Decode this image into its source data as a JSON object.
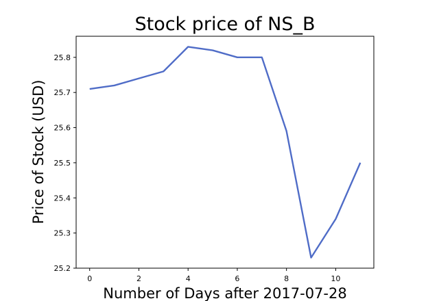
{
  "chart_data": {
    "type": "line",
    "title": "Stock price of NS_B",
    "xlabel": "Number of Days after 2017-07-28",
    "ylabel": "Price of Stock (USD)",
    "x": [
      0,
      1,
      2,
      3,
      4,
      5,
      6,
      7,
      8,
      9,
      10,
      11
    ],
    "series": [
      {
        "values": [
          25.71,
          25.72,
          25.74,
          25.76,
          25.83,
          25.82,
          25.8,
          25.8,
          25.59,
          25.23,
          25.34,
          25.5
        ]
      }
    ],
    "xlim": [
      -0.55,
      11.55
    ],
    "ylim": [
      25.2,
      25.86
    ],
    "xticks": [
      "0",
      "2",
      "4",
      "6",
      "8",
      "10"
    ],
    "yticks": [
      "25.2",
      "25.3",
      "25.4",
      "25.5",
      "25.6",
      "25.7",
      "25.8"
    ],
    "grid": false,
    "line_color": "#4f6cc7"
  }
}
